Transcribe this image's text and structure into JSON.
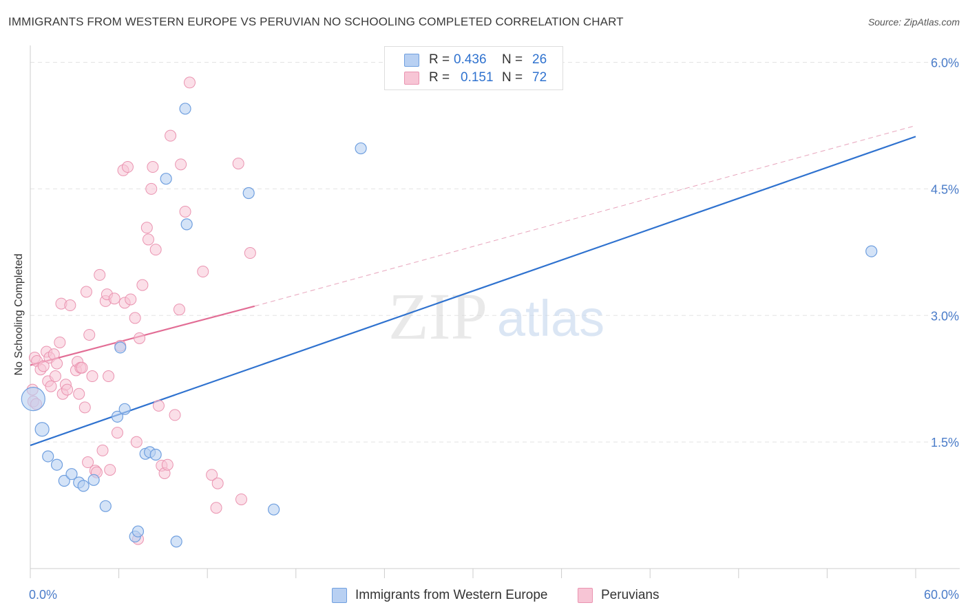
{
  "header": {
    "title": "IMMIGRANTS FROM WESTERN EUROPE VS PERUVIAN NO SCHOOLING COMPLETED CORRELATION CHART",
    "source": "Source: ZipAtlas.com"
  },
  "watermark": {
    "zip": "ZIP",
    "atlas": "atlas"
  },
  "legend_top": [
    {
      "r_label": "R =",
      "r_value": "0.436",
      "n_label": "N =",
      "n_value": "26"
    },
    {
      "r_label": "R =",
      "r_value": "0.151",
      "n_label": "N =",
      "n_value": "72"
    }
  ],
  "legend_bottom": [
    {
      "label": "Immigrants from Western Europe"
    },
    {
      "label": "Peruvians"
    }
  ],
  "colors": {
    "blue_fill": "#b8d0f2",
    "blue_stroke": "#6f9fdf",
    "blue_line": "#2f72cf",
    "pink_fill": "#f7c5d5",
    "pink_stroke": "#ea93b0",
    "pink_line": "#e26d95",
    "axis_text": "#4a7cc9",
    "grid": "#e3e3e3"
  },
  "chart_data": {
    "type": "scatter",
    "title": "IMMIGRANTS FROM WESTERN EUROPE VS PERUVIAN NO SCHOOLING COMPLETED CORRELATION CHART",
    "xlabel": "",
    "ylabel": "No Schooling Completed",
    "xlim": [
      0,
      60
    ],
    "ylim": [
      0,
      6.2
    ],
    "x_tick_labels": [
      "0.0%",
      "60.0%"
    ],
    "y_ticks": [
      1.5,
      3.0,
      4.5,
      6.0
    ],
    "y_tick_labels": [
      "1.5%",
      "3.0%",
      "4.5%",
      "6.0%"
    ],
    "grid": true,
    "legend_position": "top-center",
    "series": [
      {
        "name": "Immigrants from Western Europe",
        "r": 0.436,
        "n": 26,
        "trend": {
          "x": [
            0,
            60
          ],
          "y": [
            1.46,
            5.12
          ]
        },
        "points": [
          {
            "x": 0.2,
            "y": 2.01,
            "size": "large"
          },
          {
            "x": 0.8,
            "y": 1.65,
            "size": "medium"
          },
          {
            "x": 1.2,
            "y": 1.33
          },
          {
            "x": 1.8,
            "y": 1.23
          },
          {
            "x": 2.3,
            "y": 1.04
          },
          {
            "x": 2.8,
            "y": 1.12
          },
          {
            "x": 3.3,
            "y": 1.02
          },
          {
            "x": 3.6,
            "y": 0.98
          },
          {
            "x": 4.3,
            "y": 1.05
          },
          {
            "x": 5.1,
            "y": 0.74
          },
          {
            "x": 5.9,
            "y": 1.8
          },
          {
            "x": 6.1,
            "y": 2.62
          },
          {
            "x": 6.4,
            "y": 1.89
          },
          {
            "x": 7.1,
            "y": 0.38
          },
          {
            "x": 7.3,
            "y": 0.44
          },
          {
            "x": 7.8,
            "y": 1.36
          },
          {
            "x": 8.1,
            "y": 1.38
          },
          {
            "x": 8.5,
            "y": 1.35
          },
          {
            "x": 9.2,
            "y": 4.62
          },
          {
            "x": 9.9,
            "y": 0.32
          },
          {
            "x": 10.5,
            "y": 5.45
          },
          {
            "x": 10.6,
            "y": 4.08
          },
          {
            "x": 14.8,
            "y": 4.45
          },
          {
            "x": 16.5,
            "y": 0.7
          },
          {
            "x": 22.4,
            "y": 4.98
          },
          {
            "x": 57.0,
            "y": 3.76
          }
        ]
      },
      {
        "name": "Peruvians",
        "r": 0.151,
        "n": 72,
        "trend": {
          "x": [
            0,
            15.2
          ],
          "y": [
            2.41,
            3.11
          ]
        },
        "trend_extended": {
          "x": [
            15.2,
            60
          ],
          "y": [
            3.11,
            5.25
          ]
        },
        "points": [
          {
            "x": 0.15,
            "y": 2.12
          },
          {
            "x": 0.2,
            "y": 1.98
          },
          {
            "x": 0.3,
            "y": 2.5
          },
          {
            "x": 0.45,
            "y": 2.46
          },
          {
            "x": 0.7,
            "y": 2.36
          },
          {
            "x": 0.9,
            "y": 2.4
          },
          {
            "x": 1.1,
            "y": 2.57
          },
          {
            "x": 1.2,
            "y": 2.22
          },
          {
            "x": 1.3,
            "y": 2.5
          },
          {
            "x": 1.4,
            "y": 2.16
          },
          {
            "x": 1.6,
            "y": 2.54
          },
          {
            "x": 1.7,
            "y": 2.28
          },
          {
            "x": 1.8,
            "y": 2.43
          },
          {
            "x": 2.0,
            "y": 2.68
          },
          {
            "x": 2.1,
            "y": 3.14
          },
          {
            "x": 2.2,
            "y": 2.07
          },
          {
            "x": 2.4,
            "y": 2.18
          },
          {
            "x": 2.5,
            "y": 2.12
          },
          {
            "x": 2.7,
            "y": 3.12
          },
          {
            "x": 3.1,
            "y": 2.35
          },
          {
            "x": 3.2,
            "y": 2.45
          },
          {
            "x": 3.3,
            "y": 2.07
          },
          {
            "x": 3.4,
            "y": 2.38
          },
          {
            "x": 3.5,
            "y": 2.38
          },
          {
            "x": 3.7,
            "y": 1.91
          },
          {
            "x": 3.8,
            "y": 3.28
          },
          {
            "x": 3.9,
            "y": 1.26
          },
          {
            "x": 4.0,
            "y": 2.77
          },
          {
            "x": 4.2,
            "y": 2.28
          },
          {
            "x": 4.4,
            "y": 1.16
          },
          {
            "x": 4.5,
            "y": 1.14
          },
          {
            "x": 4.7,
            "y": 3.48
          },
          {
            "x": 4.9,
            "y": 1.4
          },
          {
            "x": 5.1,
            "y": 3.17
          },
          {
            "x": 5.2,
            "y": 3.25
          },
          {
            "x": 5.3,
            "y": 2.28
          },
          {
            "x": 5.4,
            "y": 1.17
          },
          {
            "x": 5.7,
            "y": 3.2
          },
          {
            "x": 5.9,
            "y": 1.61
          },
          {
            "x": 6.1,
            "y": 2.64
          },
          {
            "x": 6.3,
            "y": 4.72
          },
          {
            "x": 6.4,
            "y": 3.15
          },
          {
            "x": 6.6,
            "y": 4.76
          },
          {
            "x": 6.8,
            "y": 3.19
          },
          {
            "x": 7.1,
            "y": 2.97
          },
          {
            "x": 7.2,
            "y": 1.5
          },
          {
            "x": 7.3,
            "y": 0.35
          },
          {
            "x": 7.4,
            "y": 2.73
          },
          {
            "x": 7.6,
            "y": 3.36
          },
          {
            "x": 7.9,
            "y": 4.04
          },
          {
            "x": 8.0,
            "y": 3.9
          },
          {
            "x": 8.2,
            "y": 4.5
          },
          {
            "x": 8.3,
            "y": 4.76
          },
          {
            "x": 8.5,
            "y": 3.78
          },
          {
            "x": 8.7,
            "y": 1.93
          },
          {
            "x": 8.9,
            "y": 1.22
          },
          {
            "x": 9.1,
            "y": 1.13
          },
          {
            "x": 9.3,
            "y": 1.23
          },
          {
            "x": 9.5,
            "y": 5.13
          },
          {
            "x": 9.8,
            "y": 1.82
          },
          {
            "x": 10.1,
            "y": 3.07
          },
          {
            "x": 10.2,
            "y": 4.79
          },
          {
            "x": 10.5,
            "y": 4.23
          },
          {
            "x": 10.8,
            "y": 5.76
          },
          {
            "x": 11.7,
            "y": 3.52
          },
          {
            "x": 12.3,
            "y": 1.11
          },
          {
            "x": 12.6,
            "y": 0.72
          },
          {
            "x": 12.7,
            "y": 1.01
          },
          {
            "x": 14.1,
            "y": 4.8
          },
          {
            "x": 14.3,
            "y": 0.82
          },
          {
            "x": 14.9,
            "y": 3.74
          },
          {
            "x": 0.4,
            "y": 1.95
          }
        ]
      }
    ]
  }
}
